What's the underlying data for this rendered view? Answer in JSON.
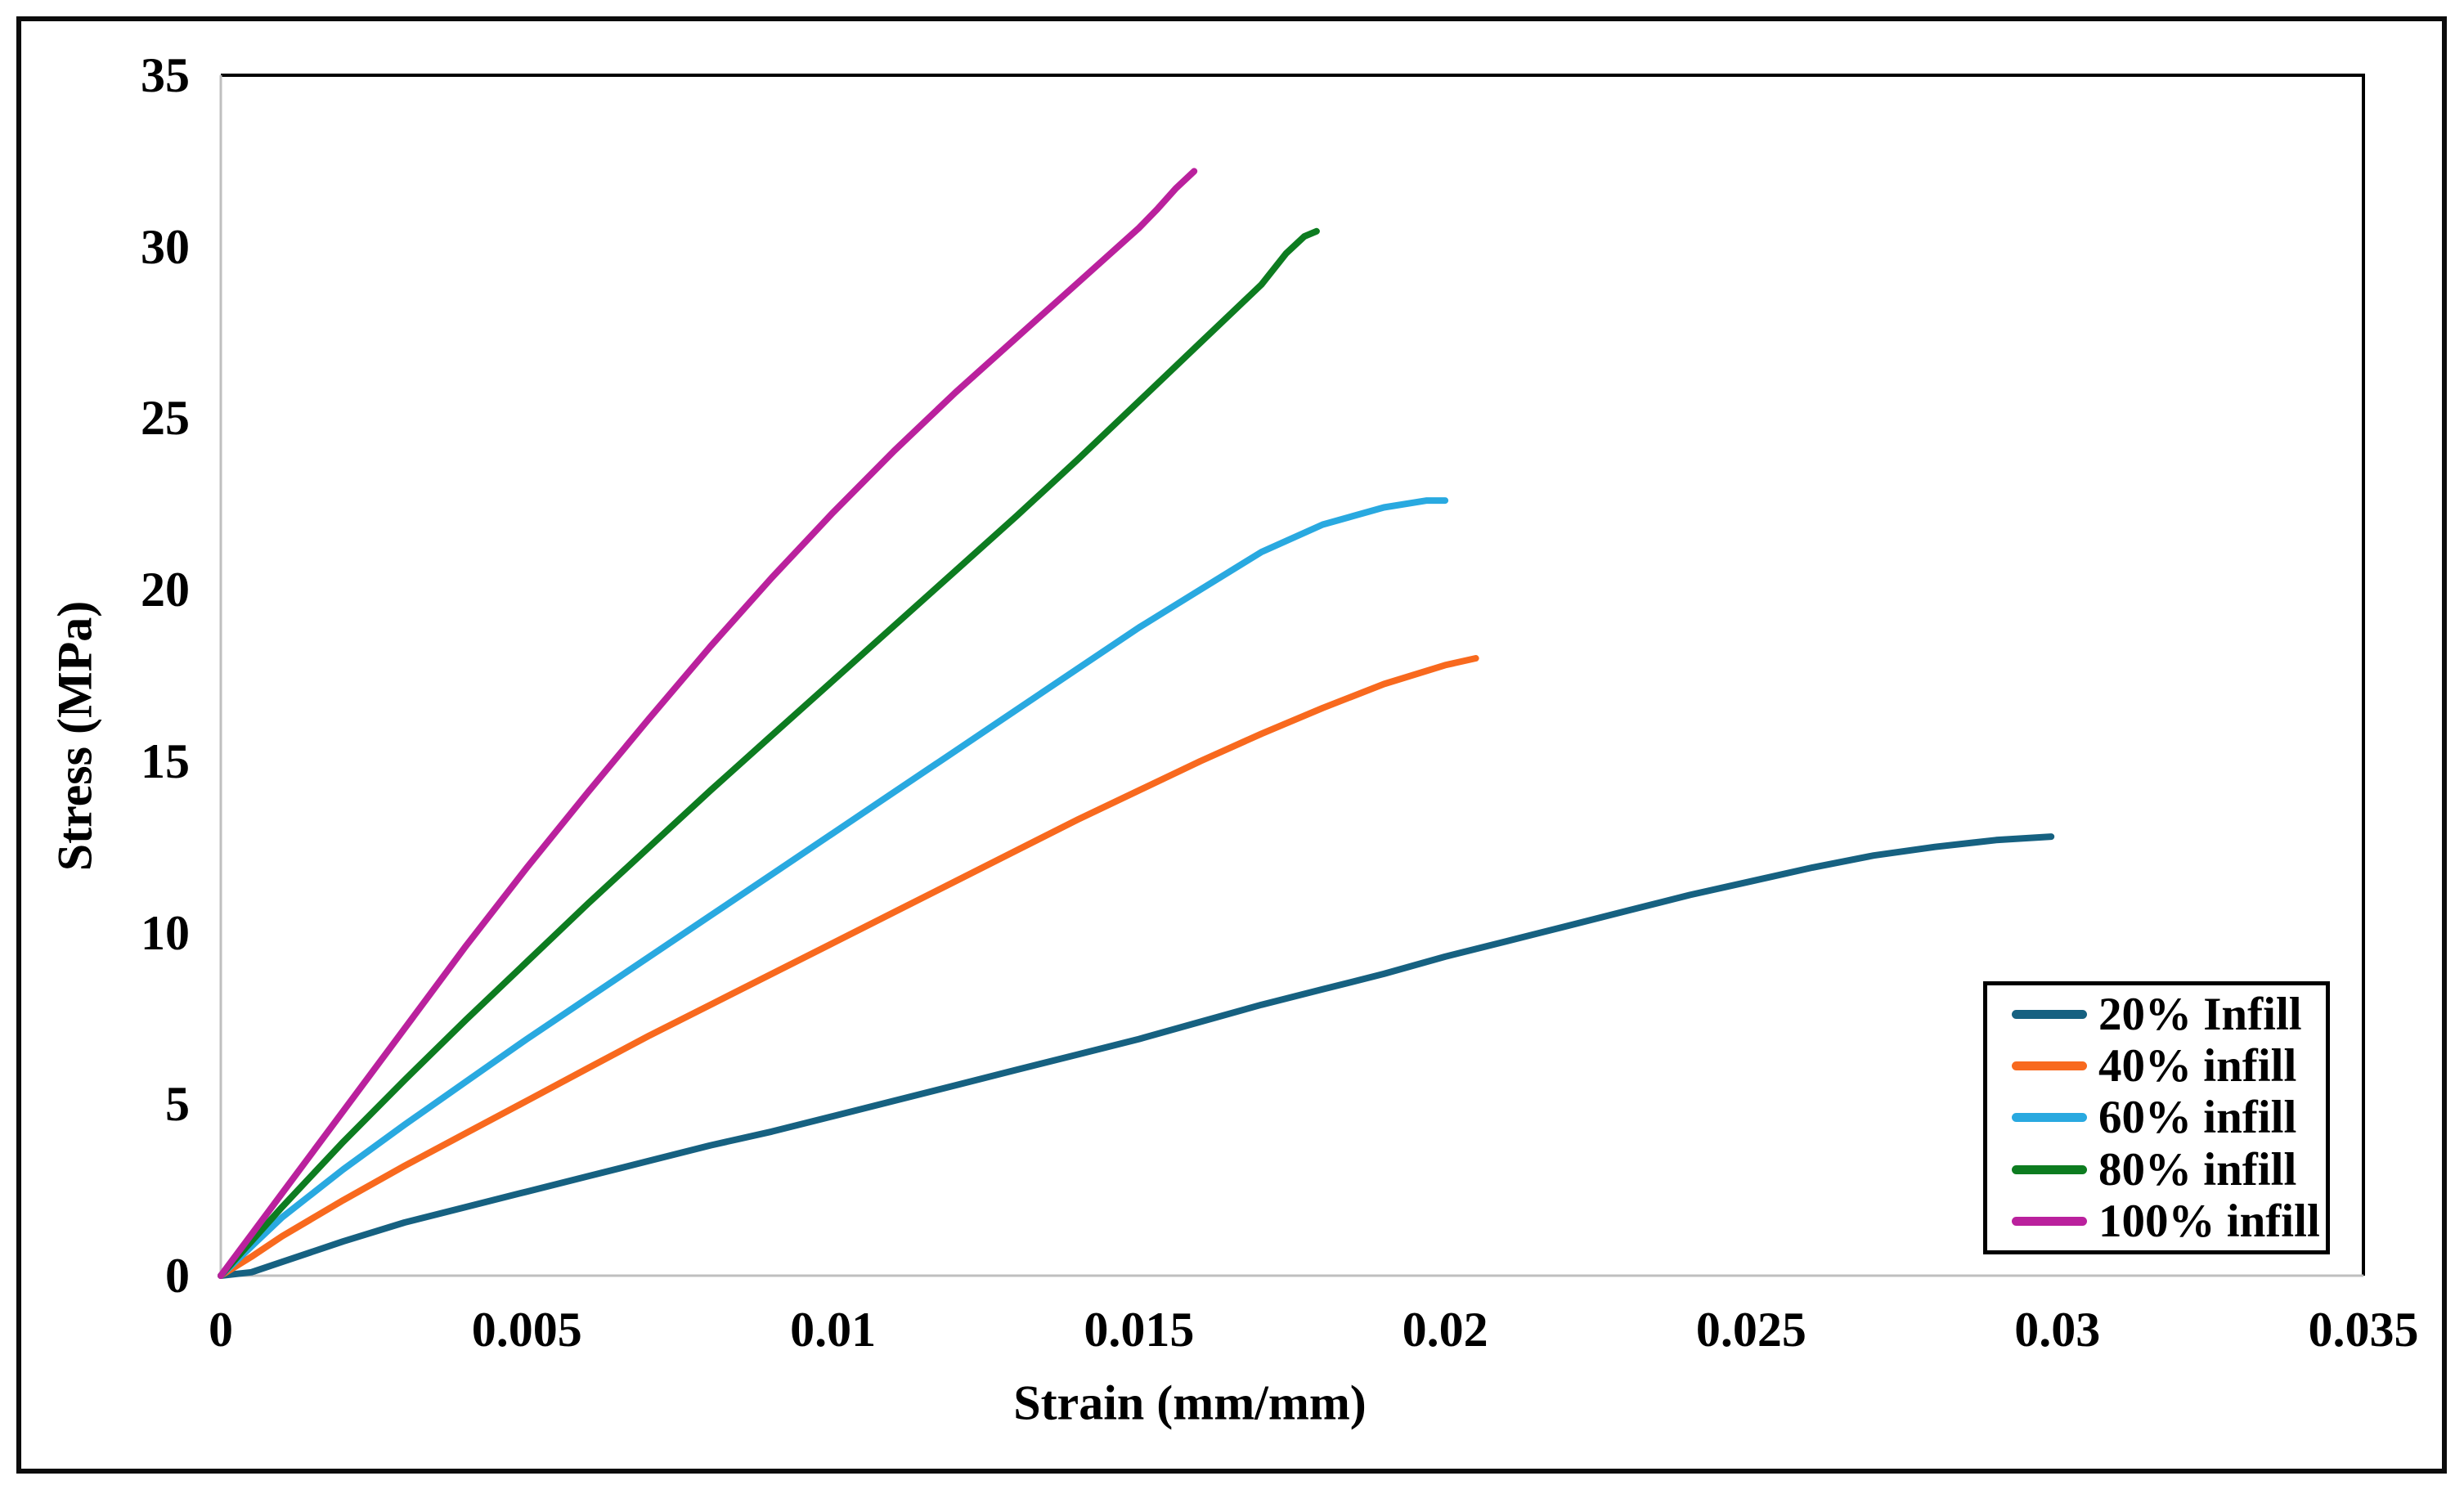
{
  "chart_data": {
    "type": "line",
    "title": "",
    "xlabel": "Strain (mm/mm)",
    "ylabel": "Stress (MPa)",
    "xlim": [
      0,
      0.035
    ],
    "ylim": [
      0,
      35
    ],
    "x_ticks": [
      0,
      0.005,
      0.01,
      0.015,
      0.02,
      0.025,
      0.03,
      0.035
    ],
    "x_tick_labels": [
      "0",
      "0.005",
      "0.01",
      "0.015",
      "0.02",
      "0.025",
      "0.03",
      "0.035"
    ],
    "y_ticks": [
      0,
      5,
      10,
      15,
      20,
      25,
      30,
      35
    ],
    "y_tick_labels": [
      "0",
      "5",
      "10",
      "15",
      "20",
      "25",
      "30",
      "35"
    ],
    "grid": false,
    "legend_position": "lower-right",
    "axis_line_color": "#bfbfbf",
    "plot_border_color": "#000000",
    "series": [
      {
        "name": "20% Infill",
        "color": "#166181",
        "points": [
          [
            0,
            0
          ],
          [
            0.0005,
            0.1
          ],
          [
            0.001,
            0.4
          ],
          [
            0.002,
            1.0
          ],
          [
            0.003,
            1.55
          ],
          [
            0.004,
            2.0
          ],
          [
            0.005,
            2.45
          ],
          [
            0.006,
            2.9
          ],
          [
            0.007,
            3.35
          ],
          [
            0.008,
            3.8
          ],
          [
            0.009,
            4.2
          ],
          [
            0.01,
            4.65
          ],
          [
            0.011,
            5.1
          ],
          [
            0.012,
            5.55
          ],
          [
            0.013,
            6.0
          ],
          [
            0.014,
            6.45
          ],
          [
            0.015,
            6.9
          ],
          [
            0.016,
            7.4
          ],
          [
            0.017,
            7.9
          ],
          [
            0.018,
            8.35
          ],
          [
            0.019,
            8.8
          ],
          [
            0.02,
            9.3
          ],
          [
            0.021,
            9.75
          ],
          [
            0.022,
            10.2
          ],
          [
            0.023,
            10.65
          ],
          [
            0.024,
            11.1
          ],
          [
            0.025,
            11.5
          ],
          [
            0.026,
            11.9
          ],
          [
            0.027,
            12.25
          ],
          [
            0.028,
            12.5
          ],
          [
            0.029,
            12.7
          ],
          [
            0.0299,
            12.8
          ]
        ]
      },
      {
        "name": "40% infill",
        "color": "#f8691e",
        "points": [
          [
            0,
            0
          ],
          [
            0.0005,
            0.55
          ],
          [
            0.001,
            1.15
          ],
          [
            0.002,
            2.2
          ],
          [
            0.003,
            3.2
          ],
          [
            0.004,
            4.15
          ],
          [
            0.005,
            5.1
          ],
          [
            0.006,
            6.05
          ],
          [
            0.007,
            7.0
          ],
          [
            0.008,
            7.9
          ],
          [
            0.009,
            8.8
          ],
          [
            0.01,
            9.7
          ],
          [
            0.011,
            10.6
          ],
          [
            0.012,
            11.5
          ],
          [
            0.013,
            12.4
          ],
          [
            0.014,
            13.3
          ],
          [
            0.015,
            14.15
          ],
          [
            0.016,
            15.0
          ],
          [
            0.017,
            15.8
          ],
          [
            0.018,
            16.55
          ],
          [
            0.019,
            17.25
          ],
          [
            0.02,
            17.8
          ],
          [
            0.0205,
            18.0
          ]
        ]
      },
      {
        "name": "60% infill",
        "color": "#29a9e0",
        "points": [
          [
            0,
            0
          ],
          [
            0.0005,
            0.85
          ],
          [
            0.001,
            1.7
          ],
          [
            0.002,
            3.1
          ],
          [
            0.003,
            4.4
          ],
          [
            0.004,
            5.65
          ],
          [
            0.005,
            6.9
          ],
          [
            0.006,
            8.1
          ],
          [
            0.007,
            9.3
          ],
          [
            0.008,
            10.5
          ],
          [
            0.009,
            11.7
          ],
          [
            0.01,
            12.9
          ],
          [
            0.011,
            14.1
          ],
          [
            0.012,
            15.3
          ],
          [
            0.013,
            16.5
          ],
          [
            0.014,
            17.7
          ],
          [
            0.015,
            18.9
          ],
          [
            0.016,
            20.0
          ],
          [
            0.017,
            21.1
          ],
          [
            0.018,
            21.9
          ],
          [
            0.019,
            22.4
          ],
          [
            0.0197,
            22.6
          ],
          [
            0.02,
            22.6
          ]
        ]
      },
      {
        "name": "80% infill",
        "color": "#0d7c20",
        "points": [
          [
            0,
            0
          ],
          [
            0.0005,
            1.0
          ],
          [
            0.001,
            2.0
          ],
          [
            0.002,
            3.9
          ],
          [
            0.003,
            5.7
          ],
          [
            0.004,
            7.45
          ],
          [
            0.005,
            9.15
          ],
          [
            0.006,
            10.85
          ],
          [
            0.007,
            12.5
          ],
          [
            0.008,
            14.15
          ],
          [
            0.009,
            15.75
          ],
          [
            0.01,
            17.35
          ],
          [
            0.011,
            18.95
          ],
          [
            0.012,
            20.55
          ],
          [
            0.013,
            22.15
          ],
          [
            0.014,
            23.8
          ],
          [
            0.015,
            25.5
          ],
          [
            0.016,
            27.2
          ],
          [
            0.017,
            28.9
          ],
          [
            0.0174,
            29.8
          ],
          [
            0.0177,
            30.3
          ],
          [
            0.0179,
            30.45
          ]
        ]
      },
      {
        "name": "100% infill",
        "color": "#ba219d",
        "points": [
          [
            0,
            0
          ],
          [
            0.0005,
            1.2
          ],
          [
            0.001,
            2.4
          ],
          [
            0.002,
            4.8
          ],
          [
            0.003,
            7.2
          ],
          [
            0.004,
            9.6
          ],
          [
            0.005,
            11.9
          ],
          [
            0.006,
            14.1
          ],
          [
            0.007,
            16.25
          ],
          [
            0.008,
            18.35
          ],
          [
            0.009,
            20.35
          ],
          [
            0.01,
            22.25
          ],
          [
            0.011,
            24.05
          ],
          [
            0.012,
            25.75
          ],
          [
            0.013,
            27.35
          ],
          [
            0.014,
            28.95
          ],
          [
            0.015,
            30.55
          ],
          [
            0.0153,
            31.1
          ],
          [
            0.0156,
            31.7
          ],
          [
            0.0159,
            32.2
          ]
        ]
      }
    ]
  }
}
